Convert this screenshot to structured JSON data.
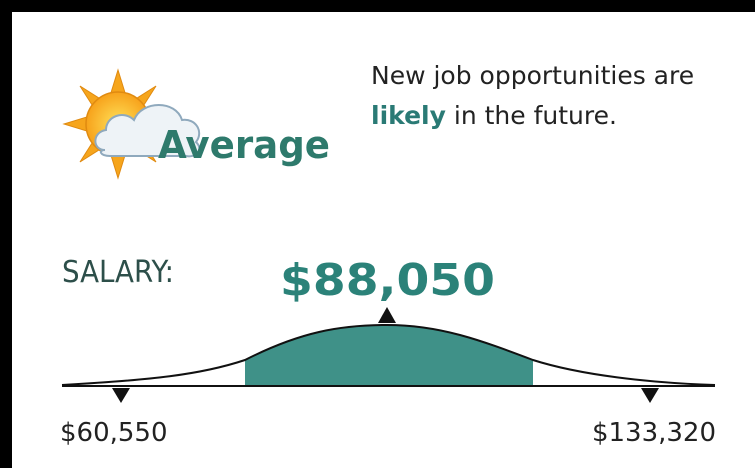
{
  "outlook": {
    "rating": "Average",
    "description_parts": [
      "New job opportunities are",
      "likely",
      "in the future."
    ]
  },
  "salary": {
    "label": "SALARY:",
    "median": "$88,050",
    "low": "$60,550",
    "high": "$133,320"
  }
}
